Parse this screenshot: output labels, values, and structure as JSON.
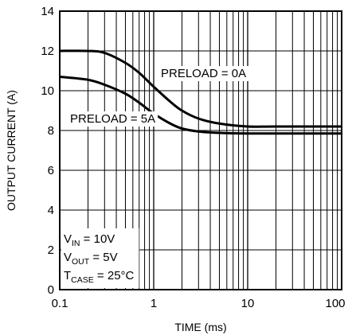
{
  "chart_data": {
    "type": "line",
    "xscale": "log",
    "xlim": [
      0.1,
      100
    ],
    "ylim": [
      0,
      14
    ],
    "grid": true,
    "xlabel": "TIME (ms)",
    "ylabel": "OUTPUT CURRENT (A)",
    "x_ticks": [
      0.1,
      1,
      10,
      100
    ],
    "x_tick_labels": [
      "0.1",
      "1",
      "10",
      "100"
    ],
    "y_ticks": [
      0,
      2,
      4,
      6,
      8,
      10,
      12,
      14
    ],
    "y_tick_labels": [
      "0",
      "2",
      "4",
      "6",
      "8",
      "10",
      "12",
      "14"
    ],
    "series": [
      {
        "name": "PRELOAD = 0A",
        "x": [
          0.1,
          0.2,
          0.3,
          0.5,
          0.7,
          1,
          1.5,
          2,
          3,
          5,
          10,
          20,
          100
        ],
        "y": [
          12.0,
          12.0,
          11.9,
          11.4,
          10.9,
          10.2,
          9.45,
          9.0,
          8.6,
          8.35,
          8.2,
          8.2,
          8.2
        ]
      },
      {
        "name": "PRELOAD = 5A",
        "x": [
          0.1,
          0.2,
          0.3,
          0.5,
          0.7,
          1,
          1.5,
          2,
          3,
          5,
          10,
          20,
          100
        ],
        "y": [
          10.7,
          10.55,
          10.3,
          9.85,
          9.4,
          8.85,
          8.35,
          8.1,
          7.95,
          7.88,
          7.85,
          7.85,
          7.85
        ]
      }
    ],
    "conditions": [
      {
        "main": "V",
        "sub": "IN",
        "rest": " = 10V"
      },
      {
        "main": "V",
        "sub": "OUT",
        "rest": " = 5V"
      },
      {
        "main": "T",
        "sub": "CASE",
        "rest": " = 25°C"
      }
    ]
  }
}
